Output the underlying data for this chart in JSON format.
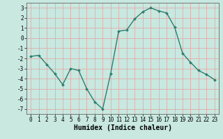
{
  "x": [
    0,
    1,
    2,
    3,
    4,
    5,
    6,
    7,
    8,
    9,
    10,
    11,
    12,
    13,
    14,
    15,
    16,
    17,
    18,
    19,
    20,
    21,
    22,
    23
  ],
  "y": [
    -1.8,
    -1.7,
    -2.6,
    -3.5,
    -4.6,
    -3.0,
    -3.2,
    -5.0,
    -6.3,
    -7.0,
    -3.5,
    0.7,
    0.8,
    1.9,
    2.6,
    3.0,
    2.7,
    2.5,
    1.1,
    -1.5,
    -2.4,
    -3.2,
    -3.6,
    -4.1
  ],
  "line_color": "#2e7d6e",
  "marker": "D",
  "markersize": 2.0,
  "linewidth": 1.0,
  "background_color": "#c8e8e0",
  "grid_color": "#e8a0a0",
  "xlabel": "Humidex (Indice chaleur)",
  "xlabel_fontsize": 7,
  "tick_fontsize": 5.5,
  "ylim": [
    -7.5,
    3.5
  ],
  "xlim": [
    -0.5,
    23.5
  ],
  "yticks": [
    -7,
    -6,
    -5,
    -4,
    -3,
    -2,
    -1,
    0,
    1,
    2,
    3
  ],
  "xticks": [
    0,
    1,
    2,
    3,
    4,
    5,
    6,
    7,
    8,
    9,
    10,
    11,
    12,
    13,
    14,
    15,
    16,
    17,
    18,
    19,
    20,
    21,
    22,
    23
  ]
}
